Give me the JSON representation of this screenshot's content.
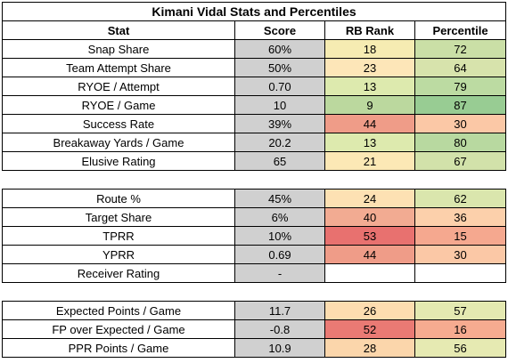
{
  "title": "Kimani Vidal Stats and Percentiles",
  "headers": {
    "stat": "Stat",
    "score": "Score",
    "rank": "RB Rank",
    "pct": "Percentile"
  },
  "sections": [
    {
      "rows": [
        {
          "stat": "Snap Share",
          "score": "60%",
          "rank": "18",
          "pct": "72",
          "rank_color": "#f6ecb2",
          "pct_color": "#cadfa6"
        },
        {
          "stat": "Team Attempt Share",
          "score": "50%",
          "rank": "23",
          "pct": "64",
          "rank_color": "#fde6b8",
          "pct_color": "#d7e3ac"
        },
        {
          "stat": "RYOE / Attempt",
          "score": "0.70",
          "rank": "13",
          "pct": "79",
          "rank_color": "#ddeaae",
          "pct_color": "#bcdba2"
        },
        {
          "stat": "RYOE / Game",
          "score": "10",
          "rank": "9",
          "pct": "87",
          "rank_color": "#bbd89e",
          "pct_color": "#98cc93"
        },
        {
          "stat": "Success Rate",
          "score": "39%",
          "rank": "44",
          "pct": "30",
          "rank_color": "#ef9c88",
          "pct_color": "#fbc8a6"
        },
        {
          "stat": "Breakaway Yards / Game",
          "score": "20.2",
          "rank": "13",
          "pct": "80",
          "rank_color": "#ddeaae",
          "pct_color": "#b8d9a0"
        },
        {
          "stat": "Elusive Rating",
          "score": "65",
          "rank": "21",
          "pct": "67",
          "rank_color": "#fce8b5",
          "pct_color": "#d2e2aa"
        }
      ]
    },
    {
      "rows": [
        {
          "stat": "Route %",
          "score": "45%",
          "rank": "24",
          "pct": "62",
          "rank_color": "#fde1b3",
          "pct_color": "#dae6ad"
        },
        {
          "stat": "Target Share",
          "score": "6%",
          "rank": "40",
          "pct": "36",
          "rank_color": "#f2ab92",
          "pct_color": "#fcd0ab"
        },
        {
          "stat": "TPRR",
          "score": "10%",
          "rank": "53",
          "pct": "15",
          "rank_color": "#e8716f",
          "pct_color": "#f5a88f"
        },
        {
          "stat": "YPRR",
          "score": "0.69",
          "rank": "44",
          "pct": "30",
          "rank_color": "#ef9c88",
          "pct_color": "#fbc8a6"
        },
        {
          "stat": "Receiver Rating",
          "score": "-",
          "rank": "",
          "pct": "",
          "rank_color": "#ffffff",
          "pct_color": "#ffffff"
        }
      ]
    },
    {
      "rows": [
        {
          "stat": "Expected Points / Game",
          "score": "11.7",
          "rank": "26",
          "pct": "57",
          "rank_color": "#fdddb0",
          "pct_color": "#e4e9b1"
        },
        {
          "stat": "FP over Expected / Game",
          "score": "-0.8",
          "rank": "52",
          "pct": "16",
          "rank_color": "#ea7a74",
          "pct_color": "#f6ab90"
        },
        {
          "stat": "PPR Points / Game",
          "score": "10.9",
          "rank": "28",
          "pct": "56",
          "rank_color": "#fbd6ab",
          "pct_color": "#e6eab2"
        }
      ]
    }
  ]
}
